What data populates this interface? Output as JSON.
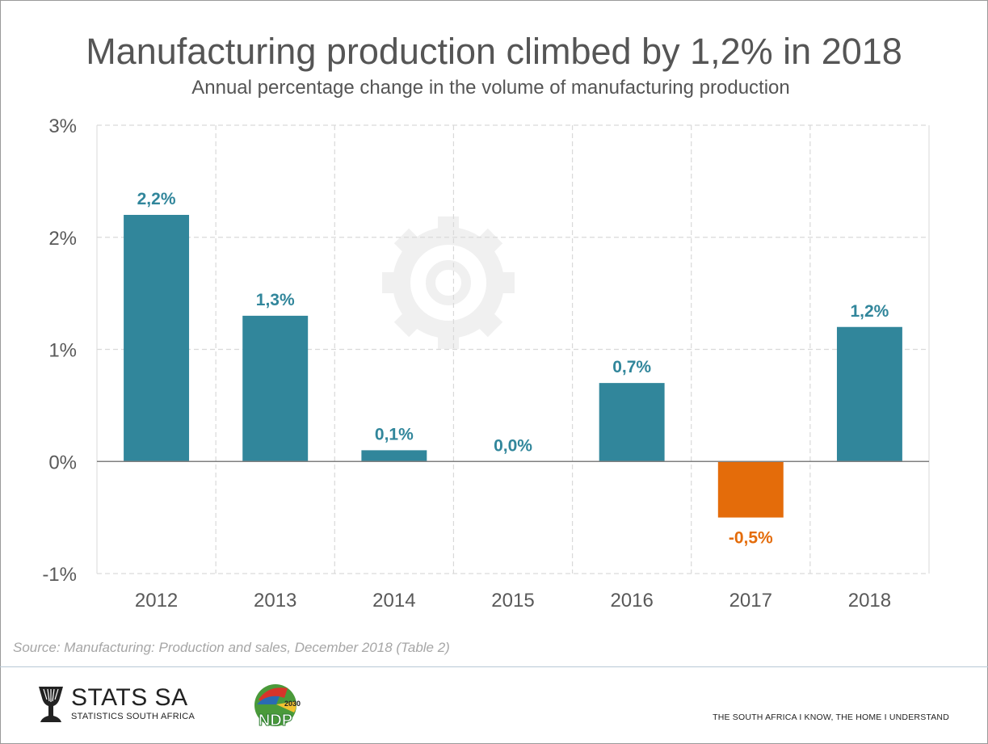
{
  "chart_data": {
    "type": "bar",
    "title": "Manufacturing production climbed by 1,2% in 2018",
    "subtitle": "Annual percentage change in the volume of manufacturing production",
    "categories": [
      "2012",
      "2013",
      "2014",
      "2015",
      "2016",
      "2017",
      "2018"
    ],
    "values": [
      2.2,
      1.3,
      0.1,
      0.0,
      0.7,
      -0.5,
      1.2
    ],
    "data_labels": [
      "2,2%",
      "1,3%",
      "0,1%",
      "0,0%",
      "0,7%",
      "-0,5%",
      "1,2%"
    ],
    "y_ticks": [
      3,
      2,
      1,
      0,
      -1
    ],
    "y_tick_labels": [
      "3%",
      "2%",
      "1%",
      "0%",
      "-1%"
    ],
    "ylim": [
      -1,
      3
    ],
    "grid": true,
    "colors": {
      "positive": "#31869b",
      "negative": "#e46c0a"
    },
    "watermark_icon": "gear-icon"
  },
  "source": "Source: Manufacturing: Production and sales, December 2018 (Table 2)",
  "footer": {
    "logo_name": "STATS SA",
    "logo_sub": "STATISTICS SOUTH AFRICA",
    "ndp_logo_text": "NDP",
    "ndp_logo_year": "2030",
    "tagline": "THE SOUTH AFRICA I KNOW, THE HOME I UNDERSTAND"
  }
}
